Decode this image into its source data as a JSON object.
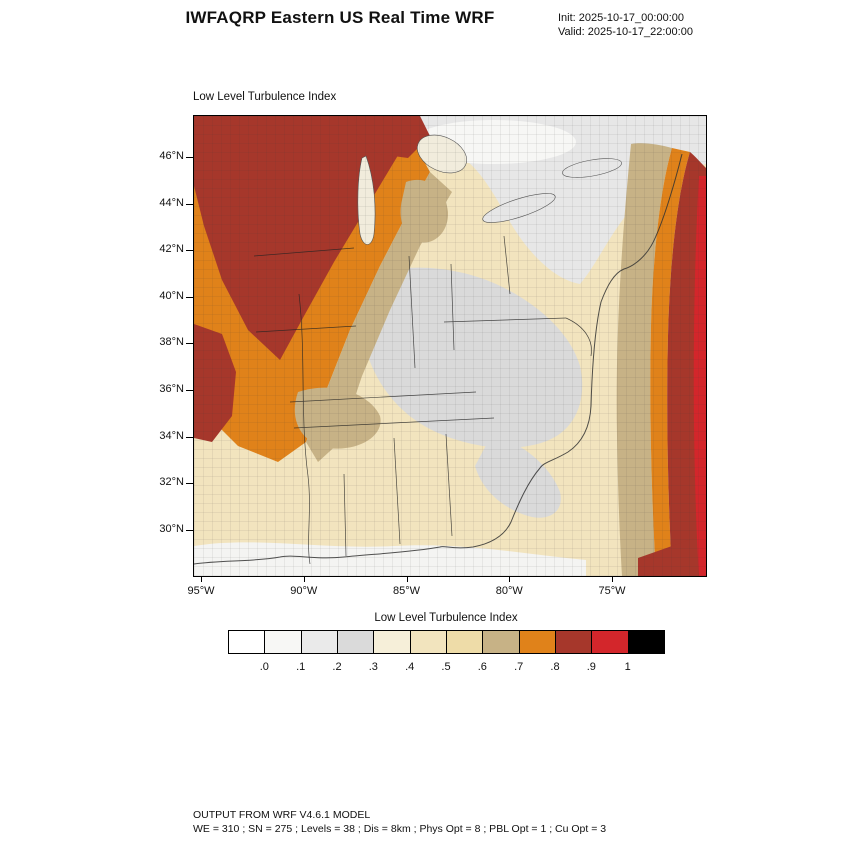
{
  "header": {
    "title": "IWFAQRP Eastern US Real Time WRF",
    "init_label": "Init: 2025-10-17_00:00:00",
    "valid_label": "Valid: 2025-10-17_22:00:00"
  },
  "map": {
    "title": "Low Level Turbulence Index",
    "y_ticks": [
      "46°N",
      "44°N",
      "42°N",
      "40°N",
      "38°N",
      "36°N",
      "34°N",
      "32°N",
      "30°N"
    ],
    "x_ticks": [
      "95°W",
      "90°W",
      "85°W",
      "80°W",
      "75°W"
    ]
  },
  "colorbar": {
    "title": "Low Level Turbulence Index",
    "tick_labels": [
      ".0",
      ".1",
      ".2",
      ".3",
      ".4",
      ".5",
      ".6",
      ".7",
      ".8",
      ".9",
      "1"
    ],
    "colors": [
      "#FFFFFF",
      "#F7F7F5",
      "#EAEAEA",
      "#DADADA",
      "#F6EFD9",
      "#F2E4BE",
      "#EEDCA8",
      "#C7B286",
      "#E0821A",
      "#A6372B",
      "#D3262B",
      "#000000"
    ]
  },
  "footer": {
    "line1": "OUTPUT FROM WRF V4.6.1 MODEL",
    "line2": "WE = 310 ; SN = 275 ; Levels = 38 ; Dis = 8km ; Phys Opt = 8 ; PBL Opt = 1 ; Cu Opt = 3"
  },
  "colors": {
    "white_soft": "#F7F7F5",
    "grey_light": "#E7E7E7",
    "grey": "#DADADA",
    "cream": "#F2E4BE",
    "cream_pale": "#F6EFD9",
    "tan": "#C7B286",
    "orange": "#E0821A",
    "darkred": "#A6372B",
    "red": "#D3262B",
    "gulf_white": "#F4F4F2",
    "lake": "#F1ECDC",
    "lake_grey": "#E6E6E6"
  },
  "chart_data": {
    "type": "heatmap",
    "title": "Low Level Turbulence Index",
    "subtitle": "IWFAQRP Eastern US Real Time WRF",
    "init_time": "2025-10-17_00:00:00",
    "valid_time": "2025-10-17_22:00:00",
    "x_tick_labels": [
      "95°W",
      "90°W",
      "85°W",
      "80°W",
      "75°W"
    ],
    "y_tick_labels": [
      "46°N",
      "44°N",
      "42°N",
      "40°N",
      "38°N",
      "36°N",
      "34°N",
      "32°N",
      "30°N"
    ],
    "xlim_estimate": [
      -97.5,
      -70.5
    ],
    "ylim_estimate": [
      28.2,
      47.8
    ],
    "legend_position": "bottom",
    "colorbar_levels": [
      0,
      0.1,
      0.2,
      0.3,
      0.4,
      0.5,
      0.6,
      0.7,
      0.8,
      0.9,
      1
    ],
    "colorbar_colors": [
      "#FFFFFF",
      "#F7F7F5",
      "#EAEAEA",
      "#DADADA",
      "#F6EFD9",
      "#F2E4BE",
      "#EEDCA8",
      "#C7B286",
      "#E0821A",
      "#A6372B",
      "#D3262B",
      "#000000"
    ],
    "regions": [
      {
        "area": "Upper Midwest: MN / WI / upper MI around Lakes Superior-Michigan",
        "approx_value": "0.8-0.9 (dark red) with 0.7-0.8 (orange) fringe"
      },
      {
        "area": "Diagonal band Iowa/Missouri through Illinois/Indiana",
        "approx_value": "0.7-0.8 (orange) with 0.6-0.7 (tan) edge"
      },
      {
        "area": "West edge strip near 93-95W, 34-39N",
        "approx_value": "0.8-0.9 (dark red)"
      },
      {
        "area": "Ohio Valley / Kentucky / West Virginia / Virginia",
        "approx_value": "0.2-0.3 (grey)"
      },
      {
        "area": "Lakes Erie-Ontario, New York, New England interior",
        "approx_value": "0.0-0.3 (white to light grey)"
      },
      {
        "area": "Southeast land: Gulf states, Tennessee, Carolinas, Georgia",
        "approx_value": "0.4-0.5 (cream) with scattered 0.2-0.3 grey patches"
      },
      {
        "area": "Near-shore Atlantic waters",
        "approx_value": "0.6-0.7 (tan)"
      },
      {
        "area": "Offshore Atlantic, eastern map edge",
        "approx_value": "0.7-1.0 (orange to dark red to red), increasing eastward"
      },
      {
        "area": "Gulf of Mexico coastal waters",
        "approx_value": "0.0-0.2 (white / light grey)"
      }
    ],
    "model_info": "OUTPUT FROM WRF V4.6.1 MODEL — WE = 310 ; SN = 275 ; Levels = 38 ; Dis = 8km ; Phys Opt = 8 ; PBL Opt = 1 ; Cu Opt = 3"
  }
}
